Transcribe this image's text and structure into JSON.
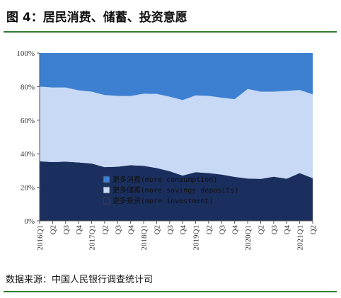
{
  "title": "图 4：居民消费、储蓄、投资意愿",
  "source": "数据来源：中国人民银行调查统计司",
  "chart_data": {
    "type": "area",
    "stacked": true,
    "x": [
      "2016Q1",
      "Q2",
      "Q3",
      "Q4",
      "2017Q1",
      "Q2",
      "Q3",
      "Q4",
      "2018Q1",
      "Q2",
      "Q3",
      "Q4",
      "2019Q1",
      "Q2",
      "Q3",
      "Q4",
      "2020Q1",
      "Q2",
      "Q3",
      "Q4",
      "2021Q1",
      "Q2"
    ],
    "series": [
      {
        "name": "更多投资(more investment)",
        "color": "#1b2f5e",
        "values": [
          35.5,
          35.0,
          35.3,
          34.8,
          34.2,
          32.0,
          32.3,
          33.2,
          32.8,
          31.5,
          29.6,
          27.0,
          29.0,
          28.5,
          27.6,
          26.2,
          25.2,
          25.0,
          26.3,
          25.1,
          28.5,
          25.4
        ]
      },
      {
        "name": "更多储蓄(more savings deposits)",
        "color": "#c7d9f5",
        "values": [
          44.5,
          44.5,
          44.2,
          43.0,
          42.8,
          43.0,
          42.2,
          41.2,
          43.0,
          44.2,
          44.4,
          45.0,
          45.8,
          46.0,
          45.8,
          46.3,
          53.4,
          52.0,
          50.7,
          52.3,
          49.5,
          50.0
        ]
      },
      {
        "name": "更多消费(more consumption)",
        "color": "#3d7fd1",
        "values": [
          20.0,
          20.5,
          20.5,
          22.2,
          23.0,
          25.0,
          25.5,
          25.6,
          24.2,
          24.3,
          26.0,
          28.0,
          25.2,
          25.5,
          26.6,
          27.5,
          21.4,
          23.0,
          23.0,
          22.6,
          22.0,
          24.6
        ]
      }
    ],
    "legend_order": [
      "更多消费(more consumption)",
      "更多储蓄(more savings deposits)",
      "更多投资(more investment)"
    ],
    "x_tick_labels": [
      "2016Q1",
      "Q2",
      "Q3",
      "Q4",
      "2017Q1",
      "Q2",
      "Q3",
      "Q4",
      "2018Q1",
      "Q2",
      "Q3",
      "Q4",
      "2019Q1",
      "Q2",
      "Q3",
      "Q4",
      "2020Q1",
      "Q2",
      "Q3",
      "Q4",
      "2021Q1",
      "Q2"
    ],
    "y_tick_labels": [
      "0%",
      "20%",
      "40%",
      "60%",
      "80%",
      "100%"
    ],
    "ylim": [
      0,
      100
    ],
    "y_ticks": [
      0,
      20,
      40,
      60,
      80,
      100
    ],
    "legend_position": "bottom-center",
    "grid": false
  }
}
